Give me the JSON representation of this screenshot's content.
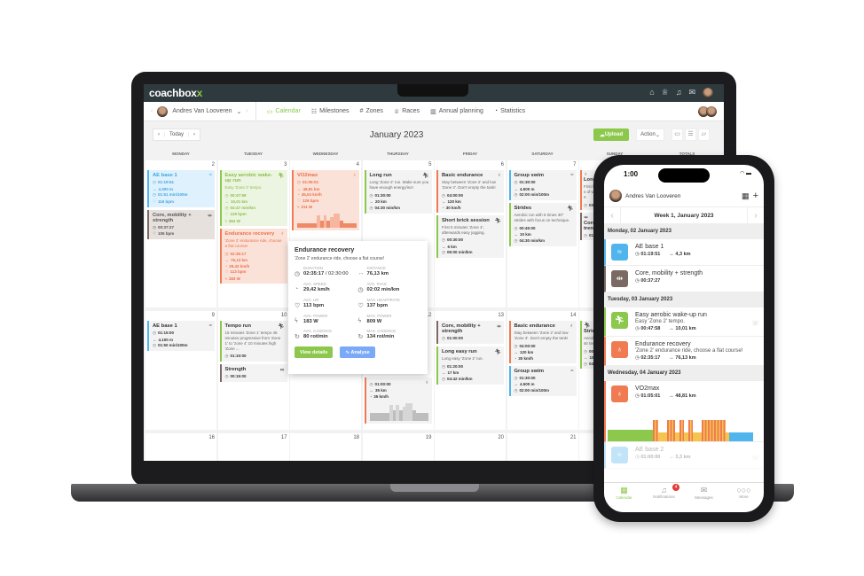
{
  "colors": {
    "swim": "#4fb5ec",
    "run": "#8cc84b",
    "bike": "#f07b53",
    "strength": "#7b6a63",
    "brand": "#8cc84b",
    "topbar": "#2f3a3f"
  },
  "app": {
    "logo": "coachbox",
    "logo_tail": "x"
  },
  "subnav": {
    "user": "Andres Van Looveren",
    "items": [
      {
        "label": "Calendar",
        "icon": "calendar-icon",
        "glyph": "▭"
      },
      {
        "label": "Milestones",
        "icon": "milestones-icon",
        "glyph": "☷"
      },
      {
        "label": "Zones",
        "icon": "hash-icon",
        "glyph": "#"
      },
      {
        "label": "Races",
        "icon": "trophy-icon",
        "glyph": "♕"
      },
      {
        "label": "Annual planning",
        "icon": "chart-icon",
        "glyph": "▥"
      },
      {
        "label": "Statistics",
        "icon": "pie-icon",
        "glyph": "◔"
      }
    ]
  },
  "toolbar": {
    "today": "Today",
    "month": "January 2023",
    "upload": "Upload",
    "action": "Action"
  },
  "weekdays": [
    "MONDAY",
    "TUESDAY",
    "WEDNESDAY",
    "THURSDAY",
    "FRIDAY",
    "SATURDAY",
    "SUNDAY",
    "TOTALS"
  ],
  "weeks": [
    {
      "days": [
        {
          "num": "2",
          "cards": [
            {
              "sport": "swim",
              "done": true,
              "title": "AE base 1",
              "metrics": [
                [
                  "◷",
                  "01:19:51"
                ],
                [
                  "↔",
                  "4.300 m"
                ],
                [
                  "◷",
                  "01:51 min/100m"
                ],
                [
                  "♡",
                  "116 bpm"
                ]
              ]
            },
            {
              "sport": "strength",
              "done": true,
              "title": "Core, mobility + strength",
              "metrics": [
                [
                  "◷",
                  "00:37:27"
                ],
                [
                  "♡",
                  "105 bpm"
                ]
              ]
            }
          ]
        },
        {
          "num": "3",
          "cards": [
            {
              "sport": "run",
              "done": true,
              "title": "Easy aerobic wake-up run",
              "desc": "Easy 'Zone 2' tempo.",
              "metrics": [
                [
                  "◷",
                  "00:47:58"
                ],
                [
                  "↔",
                  "10,01 km"
                ],
                [
                  "◷",
                  "04:47 min/km"
                ],
                [
                  "♡",
                  "129 bpm"
                ],
                [
                  "ϟ",
                  "364 W"
                ]
              ]
            },
            {
              "sport": "bike",
              "done": true,
              "title": "Endurance recovery",
              "desc": "'Zone 2' endurance ride, choose a flat course!",
              "metrics": [
                [
                  "◷",
                  "02:35:17"
                ],
                [
                  "↔",
                  "76,13 km"
                ],
                [
                  "◔",
                  "29,42 km/h"
                ],
                [
                  "♡",
                  "113 bpm"
                ],
                [
                  "ϟ",
                  "183 W"
                ]
              ]
            }
          ]
        },
        {
          "num": "4",
          "cards": [
            {
              "sport": "bike",
              "done": true,
              "title": "VO2max",
              "chart": true,
              "metrics": [
                [
                  "◷",
                  "01:05:01"
                ],
                [
                  "↔",
                  "48,81 km"
                ],
                [
                  "◔",
                  "45,04 km/h"
                ],
                [
                  "♡",
                  "129 bpm"
                ],
                [
                  "ϟ",
                  "211 W"
                ]
              ]
            }
          ]
        },
        {
          "num": "5",
          "cards": [
            {
              "sport": "run",
              "title": "Long run",
              "desc": "Long 'Zone 2' run. Make sure you have enough energy/iso!",
              "metrics": [
                [
                  "◷",
                  "01:30:00"
                ],
                [
                  "↔",
                  "20 km"
                ],
                [
                  "◷",
                  "04:30 min/km"
                ]
              ]
            }
          ]
        },
        {
          "num": "6",
          "cards": [
            {
              "sport": "bike",
              "title": "Basic endurance",
              "desc": "Stay between 'Zone 2' and low 'Zone 3'. Don't empty the tank!",
              "metrics": [
                [
                  "◷",
                  "04:00:00"
                ],
                [
                  "↔",
                  "120 km"
                ],
                [
                  "◔",
                  "30 km/h"
                ]
              ]
            },
            {
              "sport": "run",
              "title": "Short brick session",
              "desc": "First 5 minutes 'Zone 4', afterwards easy jogging.",
              "metrics": [
                [
                  "◷",
                  "00:30:00"
                ],
                [
                  "↔",
                  "6 km"
                ],
                [
                  "◷",
                  "05:00 min/km"
                ]
              ]
            }
          ]
        },
        {
          "num": "7",
          "cards": [
            {
              "sport": "swim",
              "title": "Group swim",
              "metrics": [
                [
                  "◷",
                  "01:30:00"
                ],
                [
                  "↔",
                  "4.500 m"
                ],
                [
                  "◷",
                  "02:00 min/100m"
                ]
              ]
            },
            {
              "sport": "run",
              "title": "Strides",
              "desc": "Aerobic run with 6 times 30\" strides with focus on technique.",
              "metrics": [
                [
                  "◷",
                  "00:45:00"
                ],
                [
                  "↔",
                  "10 km"
                ],
                [
                  "◷",
                  "04:30 min/km"
                ]
              ]
            }
          ]
        },
        {
          "num": "",
          "cards": [
            {
              "sport": "bike",
              "title": "Long",
              "desc": "First h sets of with 10",
              "metrics": [
                [
                  "◷",
                  "03"
                ]
              ]
            },
            {
              "sport": "strength",
              "title": "Core, stren",
              "metrics": [
                [
                  "◷",
                  "01"
                ]
              ]
            }
          ]
        }
      ]
    },
    {
      "days": [
        {
          "num": "9",
          "cards": [
            {
              "sport": "swim",
              "title": "AE base 1",
              "metrics": [
                [
                  "◷",
                  "01:15:00"
                ],
                [
                  "↔",
                  "4.100 m"
                ],
                [
                  "◷",
                  "01:50 min/100m"
                ]
              ]
            }
          ]
        },
        {
          "num": "10",
          "cards": [
            {
              "sport": "run",
              "title": "Tempo run",
              "desc": "15 minutes 'Zone 1' tempo 45 minutes progressive from 'Zone 1' to 'zone 4' 10 minutes high 'Zone ...",
              "metrics": [
                [
                  "◷",
                  "01:10:00"
                ]
              ]
            },
            {
              "sport": "strength",
              "title": "Strength",
              "metrics": [
                [
                  "◷",
                  "00:15:00"
                ]
              ]
            }
          ]
        },
        {
          "num": "11",
          "cards": []
        },
        {
          "num": "12",
          "cards": [
            {
              "sport": "bike",
              "title": "",
              "hiddenTop": true,
              "chart": "gray",
              "metrics": [
                [
                  "◷",
                  "01:00:00"
                ],
                [
                  "↔",
                  "35 km"
                ],
                [
                  "◔",
                  "35 km/h"
                ]
              ]
            }
          ]
        },
        {
          "num": "13",
          "cards": [
            {
              "sport": "strength",
              "title": "Core, mobility + strength",
              "metrics": [
                [
                  "◷",
                  "01:00:00"
                ]
              ]
            },
            {
              "sport": "run",
              "title": "Long easy run",
              "desc": "Long easy 'Zone 2' run.",
              "metrics": [
                [
                  "◷",
                  "01:20:00"
                ],
                [
                  "↔",
                  "17 km"
                ],
                [
                  "◷",
                  "04:42 min/km"
                ]
              ]
            }
          ]
        },
        {
          "num": "14",
          "cards": [
            {
              "sport": "bike",
              "title": "Basic endurance",
              "desc": "Stay between 'Zone 2' and low 'Zone 3'. Don't empty the tank!",
              "metrics": [
                [
                  "◷",
                  "04:00:00"
                ],
                [
                  "↔",
                  "120 km"
                ],
                [
                  "◔",
                  "30 km/h"
                ]
              ]
            },
            {
              "sport": "swim",
              "title": "Group swim",
              "metrics": [
                [
                  "◷",
                  "01:30:00"
                ],
                [
                  "↔",
                  "4.500 m"
                ],
                [
                  "◷",
                  "02:00 min/100m"
                ]
              ]
            }
          ]
        },
        {
          "num": "",
          "cards": [
            {
              "sport": "run",
              "title": "Stride",
              "desc": "Aerobi 30\" str techni",
              "metrics": [
                [
                  "◷",
                  "00"
                ],
                [
                  "↔",
                  "10"
                ],
                [
                  "◷",
                  "04"
                ]
              ]
            }
          ]
        }
      ]
    },
    {
      "days": [
        {
          "num": "16",
          "cards": []
        },
        {
          "num": "17",
          "cards": []
        },
        {
          "num": "18",
          "cards": []
        },
        {
          "num": "19",
          "cards": []
        },
        {
          "num": "20",
          "cards": []
        },
        {
          "num": "21",
          "cards": []
        },
        {
          "num": "",
          "cards": []
        }
      ]
    }
  ],
  "popup": {
    "title": "Endurance recovery",
    "desc": "'Zone 2' endurance ride, choose a flat course!",
    "stats": [
      {
        "label": "DURATION",
        "value": "02:35:17",
        "extra": " / 02:30:00",
        "icon": "◷"
      },
      {
        "label": "DISTANCE",
        "value": "76,13 km",
        "icon": "↔"
      },
      {
        "label": "AVG. SPEED",
        "value": "29,42 km/h",
        "icon": "◔"
      },
      {
        "label": "AVG. PACE",
        "value": "02:02 min/km",
        "icon": "◷"
      },
      {
        "label": "AVG. HR",
        "value": "113 bpm",
        "icon": "♡"
      },
      {
        "label": "MAX. HEARTRATE",
        "value": "137 bpm",
        "icon": "♡"
      },
      {
        "label": "AVG. POWER",
        "value": "183 W",
        "icon": "ϟ"
      },
      {
        "label": "MAX. POWER",
        "value": "809 W",
        "icon": "ϟ"
      },
      {
        "label": "AVG. CADENCE",
        "value": "80 rot/min",
        "icon": "↻"
      },
      {
        "label": "MAX. CADENCE",
        "value": "134 rot/min",
        "icon": "↻"
      }
    ],
    "view": "View details",
    "analyse": "Analyse"
  },
  "phone": {
    "time": "1:00",
    "user": "Andres Van Looveren",
    "week": "Week 1, January 2023",
    "days": [
      {
        "label": "Monday, 02 January 2023",
        "items": [
          {
            "sport": "swim",
            "title": "AE base 1",
            "time": "01:19:51",
            "dist": "4,3 km"
          },
          {
            "sport": "strength",
            "title": "Core, mobility + strength",
            "time": "00:37:27"
          }
        ]
      },
      {
        "label": "Tuesday, 03 January 2023",
        "items": [
          {
            "sport": "run",
            "title": "Easy aerobic wake-up run",
            "desc": "Easy 'Zone 2' tempo.",
            "time": "00:47:58",
            "dist": "10,01 km",
            "comment": true
          },
          {
            "sport": "bike",
            "title": "Endurance recovery",
            "desc": "'Zone 2' endurance ride, choose a flat course!",
            "time": "02:35:17",
            "dist": "76,13 km"
          }
        ]
      },
      {
        "label": "Wednesday, 04 January 2023",
        "items": [
          {
            "sport": "bike",
            "title": "VO2max",
            "time": "01:05:01",
            "dist": "48,81 km",
            "chart": true
          },
          {
            "sport": "swim",
            "title": "AE base 2",
            "time": "01:00:00",
            "dist": "3,3 km",
            "faded": true,
            "comment": true
          }
        ]
      }
    ],
    "tabs": [
      {
        "label": "Calendar",
        "icon": "calendar-icon",
        "glyph": "▦",
        "active": true
      },
      {
        "label": "Notifications",
        "icon": "bell-icon",
        "glyph": "♫",
        "badge": "4"
      },
      {
        "label": "Messages",
        "icon": "mail-icon",
        "glyph": "✉"
      },
      {
        "label": "More",
        "icon": "more-icon",
        "glyph": "○○○"
      }
    ]
  }
}
